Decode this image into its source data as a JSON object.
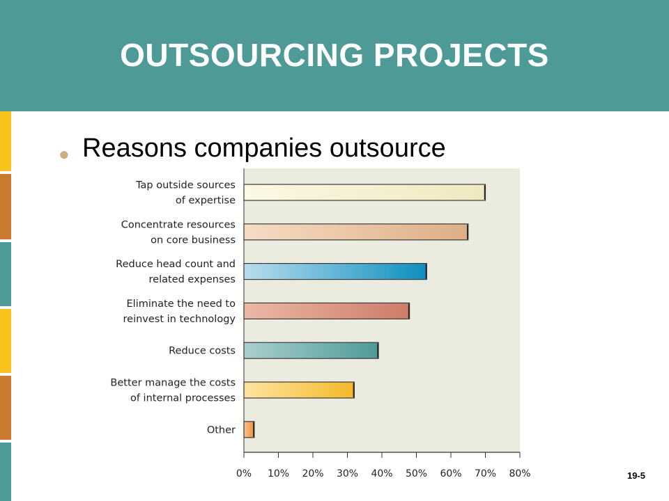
{
  "slide": {
    "title": "OUTSOURCING PROJECTS",
    "bullet": "Reasons companies outsource",
    "page_number": "19-5",
    "colors": {
      "header": "#4e9a96",
      "bullet_dot": "#c9b27a",
      "plot_background": "#ecebdf",
      "side_bar": [
        "#f9c21c",
        "#c97a2e",
        "#4e9a96",
        "#f9c21c",
        "#c97a2e",
        "#4e9a96"
      ]
    }
  },
  "chart_data": {
    "type": "bar",
    "orientation": "horizontal",
    "categories": [
      [
        "Tap outside sources",
        "of expertise"
      ],
      [
        "Concentrate resources",
        "on core business"
      ],
      [
        "Reduce head count and",
        "related expenses"
      ],
      [
        "Eliminate the need to",
        "reinvest in technology"
      ],
      [
        "Reduce costs"
      ],
      [
        "Better manage the costs",
        "of internal processes"
      ],
      [
        "Other"
      ]
    ],
    "values": [
      70,
      65,
      53,
      48,
      39,
      32,
      3
    ],
    "bar_colors": [
      [
        "#fbf8e4",
        "#efe8bf"
      ],
      [
        "#f6dcc4",
        "#dcae86"
      ],
      [
        "#b9dcec",
        "#0d8fbf"
      ],
      [
        "#ecb8a6",
        "#cc7c68"
      ],
      [
        "#a9cfcd",
        "#4e9a96"
      ],
      [
        "#fde3a2",
        "#f3b928"
      ],
      [
        "#f9c490",
        "#ef8e3a"
      ]
    ],
    "xlim": [
      0,
      80
    ],
    "xticks": [
      0,
      10,
      20,
      30,
      40,
      50,
      60,
      70,
      80
    ],
    "tick_labels": [
      "0%",
      "10%",
      "20%",
      "30%",
      "40%",
      "50%",
      "60%",
      "70%",
      "80%"
    ],
    "grid": false
  }
}
